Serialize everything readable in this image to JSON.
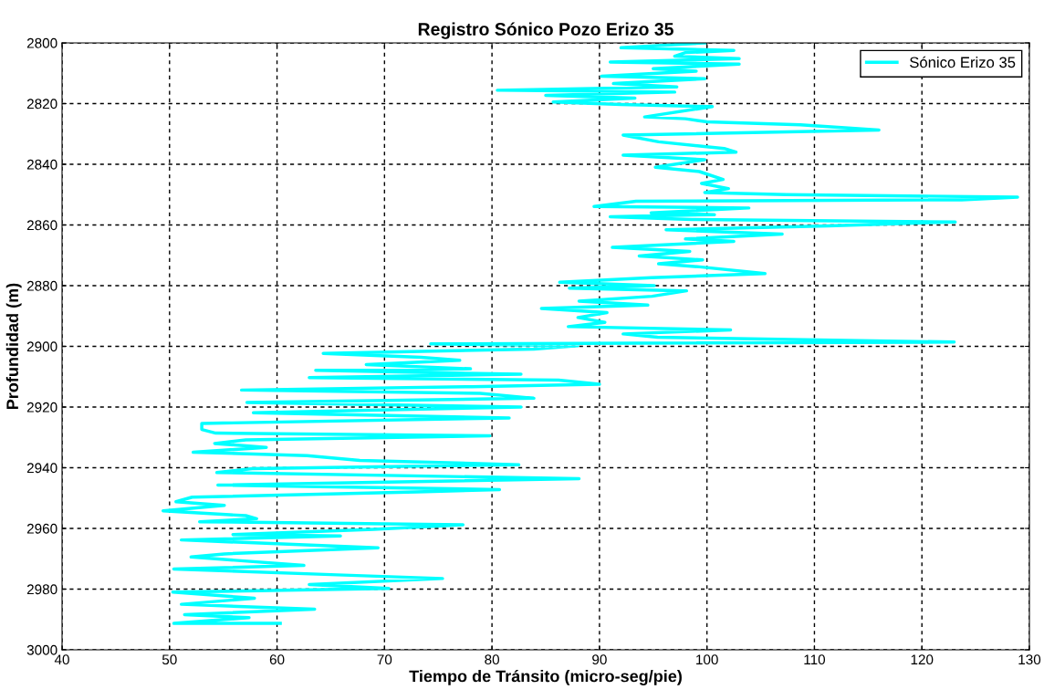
{
  "chart_data": {
    "type": "line",
    "title": "Registro Sónico Pozo Erizo 35",
    "xlabel": "Tiempo de Tránsito (micro-seg/pie)",
    "ylabel": "Profundidad (m)",
    "xlim": [
      40,
      130
    ],
    "xticks": [
      40,
      50,
      60,
      70,
      80,
      90,
      100,
      110,
      120,
      130
    ],
    "ylim": [
      3000,
      2800
    ],
    "yticks": [
      2800,
      2820,
      2840,
      2860,
      2880,
      2900,
      2920,
      2940,
      2960,
      2980,
      3000
    ],
    "grid": true,
    "legend": "top right",
    "line_style": "solid",
    "marker": "none",
    "series": [
      {
        "name": "Sónico Erizo 35",
        "color": "#00ffff",
        "x": [
          99.8,
          92,
          102.5,
          98,
          97,
          103,
          91,
          103,
          95,
          99,
          90.2,
          99.8,
          91.3,
          97.2,
          80.5,
          97,
          85,
          93.3,
          85.7,
          92,
          100.5,
          94.2,
          98,
          100,
          108.7,
          116,
          92.2,
          95.5,
          101.6,
          102.7,
          92.2,
          99.8,
          95.2,
          99.3,
          101.5,
          99.5,
          102,
          99.8,
          107.4,
          128.9,
          123.7,
          93.4,
          89.5,
          103.9,
          94.8,
          100.7,
          91,
          98.6,
          123.1,
          111.3,
          96.2,
          107,
          98,
          102.5,
          91.2,
          98.4,
          93.7,
          99.6,
          95.5,
          99.3,
          105.4,
          94.8,
          86.3,
          95.1,
          87.2,
          98.1,
          94.9,
          88.1,
          94.5,
          84.6,
          90.7,
          88,
          90.5,
          87.1,
          102.2,
          92.2,
          95.4,
          123,
          74.3,
          88,
          83.9,
          64.3,
          73.4,
          77,
          68.3,
          78,
          63.6,
          82.7,
          63,
          86.2,
          90,
          78.1,
          56.7,
          78.9,
          83.9,
          57.2,
          82.7,
          57.8,
          81.6,
          53,
          53,
          54.3,
          79.8,
          57.1,
          54.2,
          59,
          52.2,
          62.8,
          67.7,
          82.5,
          57.7,
          54.4,
          88.1,
          54.5,
          80.7,
          73,
          52.1,
          50.6,
          55.1,
          49.4,
          57.1,
          58.1,
          52.8,
          77.3,
          69,
          55.9,
          65.9,
          51.1,
          69.4,
          55.1,
          52,
          62.5,
          50.4,
          65.6,
          75.4,
          63,
          70.4,
          50.3,
          57.9,
          51.1,
          63.5,
          51.4,
          57.4,
          50.4,
          60.3
        ],
        "values": [
          2800,
          2801.6,
          2802.5,
          2803.2,
          2804.4,
          2805.2,
          2806.3,
          2807,
          2808.5,
          2809.3,
          2811,
          2811.8,
          2813.4,
          2814.5,
          2815.6,
          2816.2,
          2817.3,
          2818.2,
          2819.5,
          2820.3,
          2821,
          2824.4,
          2825,
          2826,
          2827,
          2828.7,
          2830.4,
          2832.6,
          2834.8,
          2836,
          2837,
          2838.5,
          2841,
          2842.4,
          2845,
          2846.3,
          2848,
          2849.3,
          2850,
          2850.8,
          2851.7,
          2852.2,
          2853.9,
          2854.4,
          2856,
          2856.6,
          2857.3,
          2858.2,
          2859,
          2860.3,
          2861.6,
          2863,
          2864.6,
          2865.4,
          2867.4,
          2868.7,
          2870.2,
          2871.5,
          2872.8,
          2873.8,
          2876,
          2877.4,
          2878.9,
          2880,
          2880.8,
          2881.7,
          2883.5,
          2885.1,
          2886.4,
          2887.5,
          2888.9,
          2890.5,
          2892.1,
          2893.5,
          2894.6,
          2895.9,
          2897,
          2898.6,
          2899.2,
          2899.8,
          2900.9,
          2902.3,
          2903.6,
          2904.6,
          2906,
          2907.4,
          2907.9,
          2909.2,
          2910.3,
          2911.1,
          2912.5,
          2913.3,
          2914.4,
          2915.5,
          2917.1,
          2918.5,
          2920,
          2921.9,
          2923.6,
          2925.4,
          2927.4,
          2928.6,
          2929.5,
          2930.8,
          2932,
          2933.3,
          2934.9,
          2936,
          2937.6,
          2939,
          2940.3,
          2941.6,
          2943.6,
          2945.7,
          2947.2,
          2948,
          2949.7,
          2951.2,
          2952.4,
          2954.2,
          2955.8,
          2956.8,
          2957.8,
          2958.8,
          2960.3,
          2962,
          2962.5,
          2963.8,
          2966.4,
          2968.4,
          2969.4,
          2972.2,
          2973.4,
          2975.3,
          2976.5,
          2978.5,
          2979.8,
          2981,
          2983,
          2985,
          2986.6,
          2988.4,
          2989.4,
          2991.3,
          2991.3
        ]
      }
    ]
  }
}
